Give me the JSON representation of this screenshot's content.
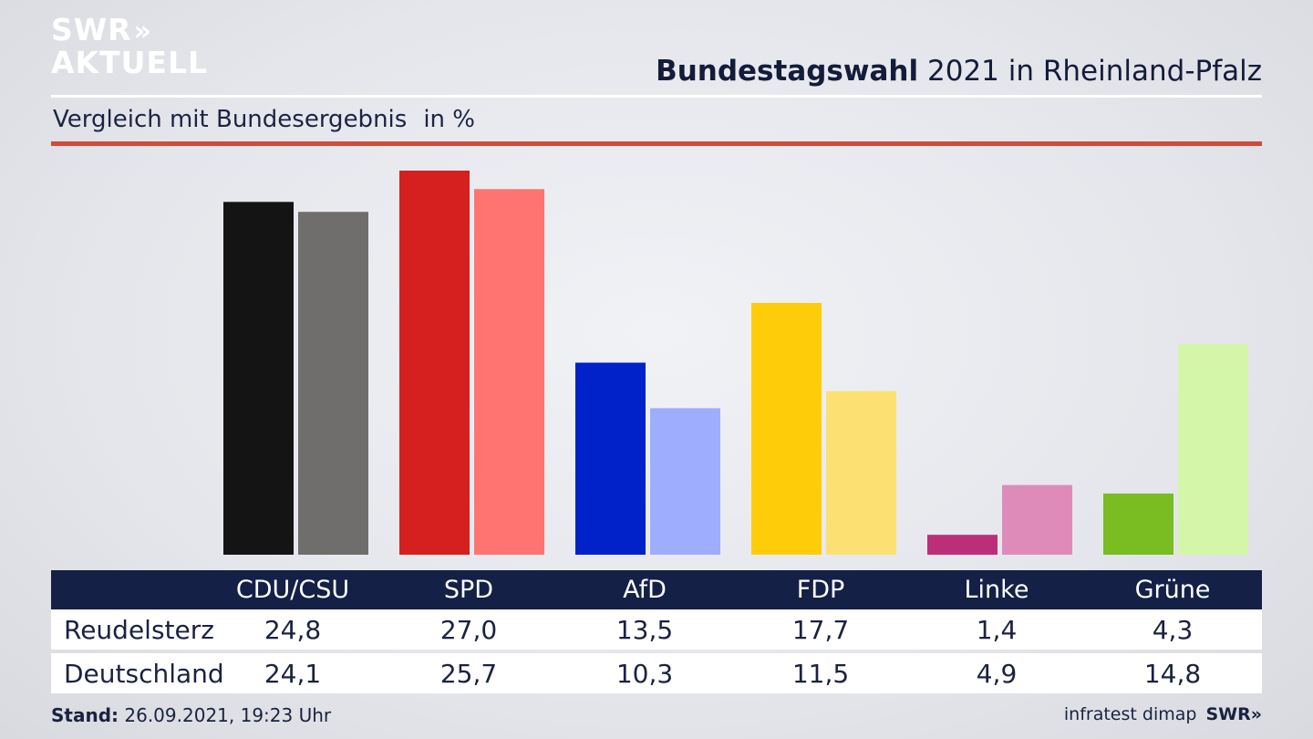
{
  "brand": {
    "logo_line1": "SWR",
    "logo_line2": "AKTUELL",
    "logo_chevrons": "»"
  },
  "header": {
    "title_bold": "Bundestagswahl",
    "title_rest": "2021 in Rheinland-Pfalz"
  },
  "subheader": {
    "text": "Vergleich mit Bundesergebnis",
    "unit": "in %"
  },
  "chart_data": {
    "type": "bar",
    "categories": [
      "CDU/CSU",
      "SPD",
      "AfD",
      "FDP",
      "Linke",
      "Grüne"
    ],
    "series": [
      {
        "name": "Reudelsterz",
        "values": [
          24.8,
          27.0,
          13.5,
          17.7,
          1.4,
          4.3
        ]
      },
      {
        "name": "Deutschland",
        "values": [
          24.1,
          25.7,
          10.3,
          11.5,
          4.9,
          14.8
        ]
      }
    ],
    "colors": {
      "Reudelsterz": [
        "#141414",
        "#d61f1f",
        "#0022c8",
        "#ffcc0a",
        "#bd2e78",
        "#79bd22"
      ],
      "Deutschland": [
        "#6f6e6d",
        "#ff7470",
        "#9fadff",
        "#fde072",
        "#df8bba",
        "#d4f6a8"
      ]
    },
    "ylim": [
      0,
      27.0
    ],
    "grid": false,
    "xlabel": "",
    "ylabel": ""
  },
  "table": {
    "header_labels": [
      "CDU/CSU",
      "SPD",
      "AfD",
      "FDP",
      "Linke",
      "Grüne"
    ],
    "rows": [
      {
        "label": "Reudelsterz",
        "values": [
          "24,8",
          "27,0",
          "13,5",
          "17,7",
          "1,4",
          "4,3"
        ]
      },
      {
        "label": "Deutschland",
        "values": [
          "24,1",
          "25,7",
          "10,3",
          "11,5",
          "4,9",
          "14,8"
        ]
      }
    ]
  },
  "footer": {
    "stand_label": "Stand:",
    "stand_value": "26.09.2021, 19:23 Uhr",
    "source": "infratest dimap",
    "brand": "SWR",
    "brand_chevrons": "»"
  }
}
